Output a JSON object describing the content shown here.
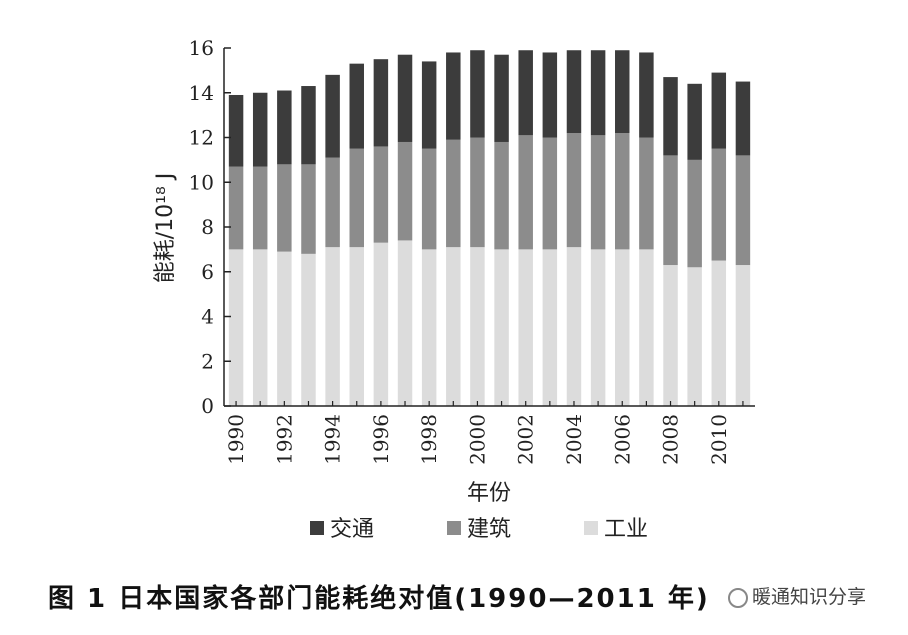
{
  "chart_data": {
    "type": "bar",
    "stacked": true,
    "categories": [
      "1990",
      "1991",
      "1992",
      "1993",
      "1994",
      "1995",
      "1996",
      "1997",
      "1998",
      "1999",
      "2000",
      "2001",
      "2002",
      "2003",
      "2004",
      "2005",
      "2006",
      "2007",
      "2008",
      "2009",
      "2010",
      "2011"
    ],
    "x_tick_labels": [
      "1990",
      "1992",
      "1994",
      "1996",
      "1998",
      "2000",
      "2002",
      "2004",
      "2006",
      "2008",
      "2010"
    ],
    "series": [
      {
        "name": "工业",
        "color": "#dcdcdc",
        "values": [
          7.0,
          7.0,
          6.9,
          6.8,
          7.1,
          7.1,
          7.3,
          7.4,
          7.0,
          7.1,
          7.1,
          7.0,
          7.0,
          7.0,
          7.1,
          7.0,
          7.0,
          7.0,
          6.3,
          6.2,
          6.5,
          6.3
        ]
      },
      {
        "name": "建筑",
        "color": "#8c8c8c",
        "values": [
          3.7,
          3.7,
          3.9,
          4.0,
          4.0,
          4.4,
          4.3,
          4.4,
          4.5,
          4.8,
          4.9,
          4.8,
          5.1,
          5.0,
          5.1,
          5.1,
          5.2,
          5.0,
          4.9,
          4.8,
          5.0,
          4.9
        ]
      },
      {
        "name": "交通",
        "color": "#3c3c3c",
        "values": [
          3.2,
          3.3,
          3.3,
          3.5,
          3.7,
          3.8,
          3.9,
          3.9,
          3.9,
          3.9,
          3.9,
          3.9,
          3.8,
          3.8,
          3.7,
          3.8,
          3.7,
          3.8,
          3.5,
          3.4,
          3.4,
          3.3
        ]
      }
    ],
    "legend_order": [
      "交通",
      "建筑",
      "工业"
    ],
    "legend_position": "bottom",
    "xlabel": "年份",
    "ylabel": "能耗/10¹⁸ J",
    "ylim": [
      0,
      16
    ],
    "y_ticks": [
      "0",
      "2",
      "4",
      "6",
      "8",
      "10",
      "12",
      "14",
      "16"
    ],
    "grid": false
  },
  "caption": "图 1   日本国家各部门能耗绝对值(1990—2011 年)",
  "watermark": {
    "icon": "wechat-icon",
    "text": "暖通知识分享"
  }
}
